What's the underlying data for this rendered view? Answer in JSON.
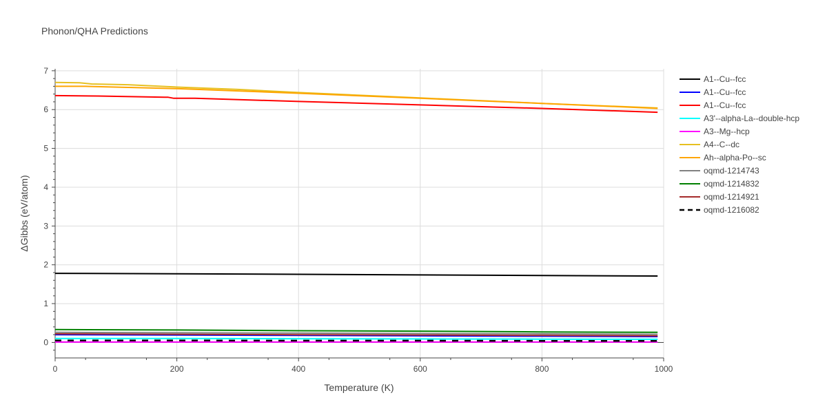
{
  "chart_data": {
    "type": "line",
    "title": "Phonon/QHA Predictions",
    "xlabel": "Temperature (K)",
    "ylabel": "ΔGibbs (eV/atom)",
    "xlim": [
      0,
      1000
    ],
    "ylim": [
      -0.4,
      7.05
    ],
    "xticks": [
      0,
      200,
      400,
      600,
      800,
      1000
    ],
    "xtick_labels": [
      "0",
      "200",
      "400",
      "600",
      "800",
      "1000"
    ],
    "yticks": [
      0,
      1,
      2,
      3,
      4,
      5,
      6,
      7
    ],
    "ytick_labels": [
      "0",
      "1",
      "2",
      "3",
      "4",
      "5",
      "6",
      "7"
    ],
    "grid": true,
    "legend_position": "right",
    "series": [
      {
        "name": "A1--Cu--fcc",
        "color": "#000000",
        "dash": "solid",
        "x": [
          0,
          200,
          400,
          600,
          800,
          990
        ],
        "y": [
          1.78,
          1.77,
          1.755,
          1.74,
          1.725,
          1.71
        ]
      },
      {
        "name": "A1--Cu--fcc",
        "color": "#0000ff",
        "dash": "solid",
        "x": [
          0,
          200,
          400,
          600,
          800,
          990
        ],
        "y": [
          0.2,
          0.19,
          0.18,
          0.17,
          0.16,
          0.15
        ]
      },
      {
        "name": "A1--Cu--fcc",
        "color": "#ff0000",
        "dash": "solid",
        "x": [
          0,
          70,
          180,
          185,
          195,
          230,
          400,
          600,
          800,
          990
        ],
        "y": [
          6.36,
          6.35,
          6.32,
          6.32,
          6.29,
          6.29,
          6.21,
          6.12,
          6.03,
          5.93
        ]
      },
      {
        "name": "A3'--alpha-La--double-hcp",
        "color": "#00ffff",
        "dash": "solid",
        "x": [
          0,
          200,
          400,
          600,
          800,
          990
        ],
        "y": [
          0.1,
          0.1,
          0.095,
          0.09,
          0.085,
          0.08
        ]
      },
      {
        "name": "A3--Mg--hcp",
        "color": "#ff00ff",
        "dash": "solid",
        "x": [
          0,
          200,
          400,
          600,
          800,
          990
        ],
        "y": [
          0.01,
          0.01,
          0.01,
          0.01,
          0.01,
          0.01
        ]
      },
      {
        "name": "A4--C--dc",
        "color": "#e6c020",
        "dash": "solid",
        "x": [
          0,
          40,
          60,
          120,
          200,
          300,
          400,
          600,
          800,
          990
        ],
        "y": [
          6.7,
          6.69,
          6.66,
          6.64,
          6.58,
          6.52,
          6.44,
          6.3,
          6.16,
          6.04
        ]
      },
      {
        "name": "Ah--alpha-Po--sc",
        "color": "#ffa500",
        "dash": "solid",
        "x": [
          0,
          50,
          200,
          400,
          600,
          800,
          990
        ],
        "y": [
          6.6,
          6.6,
          6.54,
          6.42,
          6.29,
          6.16,
          6.03
        ]
      },
      {
        "name": "oqmd-1214743",
        "color": "#808080",
        "dash": "solid",
        "x": [
          0,
          200,
          400,
          600,
          800,
          990
        ],
        "y": [
          0.26,
          0.25,
          0.24,
          0.23,
          0.22,
          0.21
        ]
      },
      {
        "name": "oqmd-1214832",
        "color": "#008000",
        "dash": "solid",
        "x": [
          0,
          200,
          400,
          600,
          800,
          990
        ],
        "y": [
          0.33,
          0.32,
          0.3,
          0.29,
          0.27,
          0.26
        ]
      },
      {
        "name": "oqmd-1214921",
        "color": "#a52a2a",
        "dash": "solid",
        "x": [
          0,
          200,
          400,
          600,
          800,
          990
        ],
        "y": [
          0.22,
          0.21,
          0.2,
          0.19,
          0.18,
          0.17
        ]
      },
      {
        "name": "oqmd-1216082",
        "color": "#000000",
        "dash": "dash",
        "x": [
          0,
          200,
          400,
          600,
          800,
          990
        ],
        "y": [
          0.05,
          0.05,
          0.045,
          0.045,
          0.04,
          0.04
        ]
      }
    ]
  }
}
